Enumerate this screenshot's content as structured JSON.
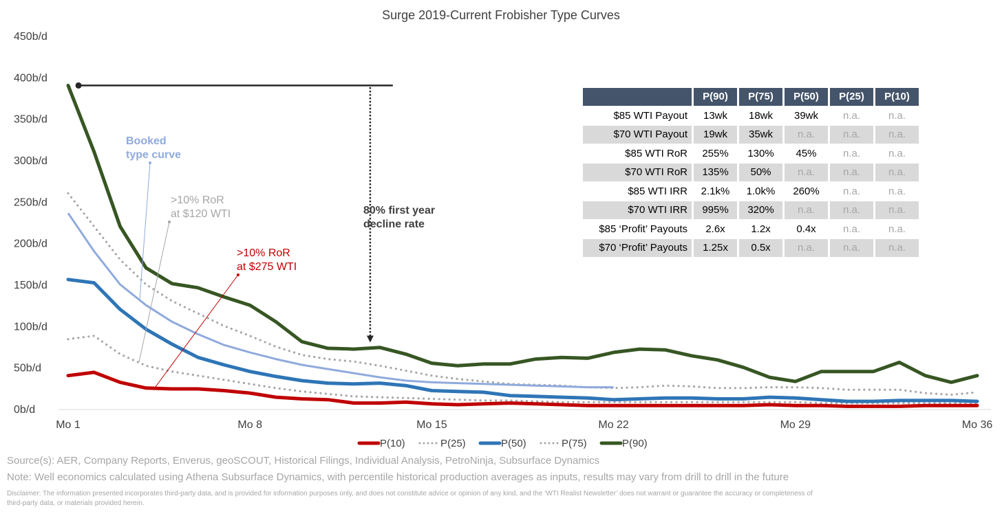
{
  "chart_data": {
    "type": "line",
    "title": "Surge 2019-Current Frobisher Type Curves",
    "xlabel": "",
    "ylabel": "",
    "ylim": [
      0,
      450
    ],
    "y_ticks": [
      "0b/d",
      "50b/d",
      "100b/d",
      "150b/d",
      "200b/d",
      "250b/d",
      "300b/d",
      "350b/d",
      "400b/d",
      "450b/d"
    ],
    "x_ticks": [
      {
        "month": 1,
        "label": "Mo 1"
      },
      {
        "month": 8,
        "label": "Mo 8"
      },
      {
        "month": 15,
        "label": "Mo 15"
      },
      {
        "month": 22,
        "label": "Mo 22"
      },
      {
        "month": 29,
        "label": "Mo 29"
      },
      {
        "month": 36,
        "label": "Mo 36"
      }
    ],
    "xlim": [
      1,
      36
    ],
    "grid": false,
    "legend_position": "bottom",
    "series": [
      {
        "name": "P(10)",
        "color": "#c00000",
        "style": "solid",
        "values": [
          40,
          44,
          32,
          25,
          24,
          24,
          22,
          19,
          14,
          12,
          11,
          7,
          7,
          8,
          6,
          5,
          6,
          7,
          6,
          5,
          4,
          4,
          4,
          4,
          4,
          4,
          4,
          5,
          4,
          4,
          3,
          3,
          3,
          4,
          4,
          4
        ]
      },
      {
        "name": "P(25)",
        "color": "#a6a6a6",
        "style": "dotted",
        "values": [
          84,
          88,
          66,
          52,
          45,
          40,
          35,
          30,
          25,
          21,
          18,
          15,
          14,
          13,
          12,
          11,
          10,
          10,
          9,
          8,
          8,
          8,
          8,
          8,
          8,
          8,
          8,
          8,
          8,
          7,
          7,
          7,
          7,
          7,
          7,
          7
        ]
      },
      {
        "name": "P(50)",
        "color": "#2e75b6",
        "style": "solid",
        "values": [
          156,
          152,
          120,
          96,
          78,
          62,
          53,
          45,
          39,
          34,
          31,
          30,
          31,
          28,
          22,
          21,
          20,
          16,
          15,
          14,
          13,
          11,
          12,
          13,
          13,
          12,
          12,
          14,
          13,
          11,
          9,
          9,
          10,
          10,
          10,
          9
        ]
      },
      {
        "name": "P(75)",
        "color": "#a6a6a6",
        "style": "dotted",
        "values": [
          260,
          220,
          180,
          150,
          130,
          115,
          100,
          88,
          75,
          65,
          60,
          57,
          52,
          46,
          40,
          36,
          33,
          30,
          29,
          28,
          26,
          25,
          26,
          28,
          27,
          25,
          25,
          26,
          26,
          25,
          23,
          23,
          23,
          19,
          17,
          20
        ]
      },
      {
        "name": "P(90)",
        "color": "#375623",
        "style": "solid",
        "values": [
          390,
          310,
          220,
          170,
          151,
          146,
          135,
          125,
          105,
          81,
          73,
          72,
          74,
          66,
          55,
          52,
          54,
          54,
          60,
          62,
          61,
          68,
          72,
          71,
          64,
          59,
          50,
          38,
          33,
          45,
          45,
          45,
          56,
          40,
          32,
          40
        ]
      }
    ],
    "booked_type_curve": {
      "color": "#8faadc",
      "values": [
        236,
        190,
        150,
        125,
        105,
        90,
        77,
        68,
        60,
        53,
        48,
        43,
        38,
        34,
        32,
        31,
        30,
        29,
        28,
        27,
        26,
        26
      ]
    },
    "reference_level": {
      "value": 390,
      "from_month": 1.4,
      "to_month": 13.5
    },
    "decline_arrow": {
      "month": 13,
      "from": 388,
      "to": 80
    },
    "annotations": {
      "booked": {
        "line1": "Booked",
        "line2": "type curve",
        "color": "#8faadc"
      },
      "ror120": {
        "line1": ">10% RoR",
        "line2": "at $120 WTI",
        "color": "#a6a6a6"
      },
      "ror275": {
        "line1": ">10% RoR",
        "line2": "at $275 WTI",
        "color": "#c00000"
      },
      "decline": {
        "line1": "80% first",
        "line2": "year",
        "line3": "decline rate",
        "text1": "80% first year",
        "text2": "decline rate"
      }
    }
  },
  "table": {
    "headers": [
      "",
      "P(90)",
      "P(75)",
      "P(50)",
      "P(25)",
      "P(10)"
    ],
    "rows": [
      {
        "label": "$85 WTI Payout",
        "values": [
          "13wk",
          "18wk",
          "39wk",
          "n.a.",
          "n.a."
        ]
      },
      {
        "label": "$70 WTI Payout",
        "values": [
          "19wk",
          "35wk",
          "n.a.",
          "n.a.",
          "n.a."
        ]
      },
      {
        "label": "$85 WTI RoR",
        "values": [
          "255%",
          "130%",
          "45%",
          "n.a.",
          "n.a."
        ]
      },
      {
        "label": "$70 WTI RoR",
        "values": [
          "135%",
          "50%",
          "n.a.",
          "n.a.",
          "n.a."
        ]
      },
      {
        "label": "$85 WTI IRR",
        "values": [
          "2.1k%",
          "1.0k%",
          "260%",
          "n.a.",
          "n.a."
        ]
      },
      {
        "label": "$70 WTI IRR",
        "values": [
          "995%",
          "320%",
          "n.a.",
          "n.a.",
          "n.a."
        ]
      },
      {
        "label": "$85 ‘Profit’ Payouts",
        "values": [
          "2.6x",
          "1.2x",
          "0.4x",
          "n.a.",
          "n.a."
        ]
      },
      {
        "label": "$70 ‘Profit’ Payouts",
        "values": [
          "1.25x",
          "0.5x",
          "n.a.",
          "n.a.",
          "n.a."
        ]
      }
    ]
  },
  "footer": {
    "sources": "Source(s): AER, Company Reports, Enverus, geoSCOUT, Historical Filings, Individual Analysis, PetroNinja, Subsurface Dynamics",
    "note": "Note: Well economics calculated using Athena Subsurface Dynamics, with percentile historical production averages as inputs, results may vary from drill to drill in the future",
    "disclaimer1": "Disclaimer: The information presented incorporates third-party data, and is provided for information purposes only, and does not constitute advice or opinion of any kind, and the ‘WTI Realist Newsletter’ does not warrant or guarantee the accuracy or completeness of",
    "disclaimer2": "third-party data, or materials provided herein."
  }
}
